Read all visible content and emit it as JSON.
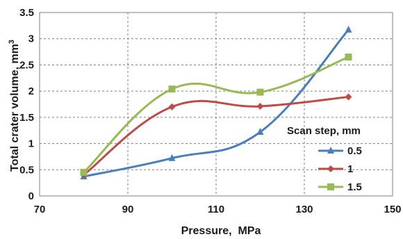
{
  "chart_data": {
    "type": "line",
    "xlabel": "Pressure,  MPa",
    "ylabel": "Total crater volume, mm",
    "ylabel_superscript": "3",
    "xlim": [
      70,
      150
    ],
    "ylim": [
      0,
      3.5
    ],
    "x_ticks": [
      "70",
      "90",
      "110",
      "130",
      "150"
    ],
    "y_ticks": [
      "0",
      "0.5",
      "1",
      "1.5",
      "2",
      "2.5",
      "3",
      "3.5"
    ],
    "grid": true,
    "smooth": true,
    "legend": {
      "title": "Scan step, mm",
      "placement": "right"
    },
    "series": [
      {
        "name": "0.5",
        "color": "#4a7ebb",
        "marker": "triangle",
        "x": [
          80,
          100,
          120,
          140
        ],
        "y": [
          0.37,
          0.72,
          1.22,
          3.17
        ]
      },
      {
        "name": "1",
        "color": "#be4b48",
        "marker": "diamond",
        "x": [
          80,
          100,
          120,
          140
        ],
        "y": [
          0.4,
          1.7,
          1.71,
          1.89
        ]
      },
      {
        "name": "1.5",
        "color": "#98b954",
        "marker": "square",
        "x": [
          80,
          100,
          120,
          140
        ],
        "y": [
          0.45,
          2.04,
          1.98,
          2.65
        ]
      }
    ]
  }
}
